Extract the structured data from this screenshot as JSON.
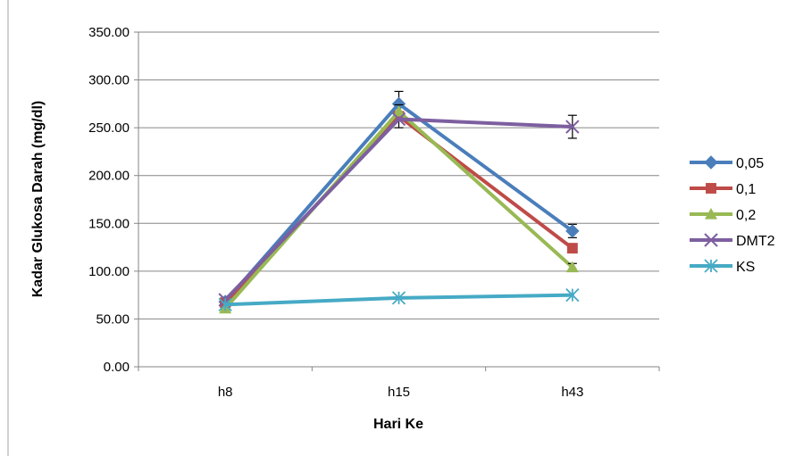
{
  "chart_data": {
    "type": "line",
    "xlabel": "Hari Ke",
    "ylabel": "Kadar Glukosa Darah (mg/dl)",
    "categories": [
      "h8",
      "h15",
      "h43"
    ],
    "ylim": [
      0,
      350
    ],
    "yticks": [
      "0.00",
      "50.00",
      "100.00",
      "150.00",
      "200.00",
      "250.00",
      "300.00",
      "350.00"
    ],
    "grid": true,
    "legend_position": "right",
    "series": [
      {
        "name": "0,05",
        "values": [
          68,
          275,
          142
        ],
        "errors": [
          0,
          13,
          7
        ],
        "color": "#4a7ebb",
        "marker": "diamond"
      },
      {
        "name": "0,1",
        "values": [
          67,
          262,
          124
        ],
        "errors": [
          0,
          12,
          0
        ],
        "color": "#be4b48",
        "marker": "square"
      },
      {
        "name": "0,2",
        "values": [
          61,
          267,
          104
        ],
        "errors": [
          0,
          0,
          4
        ],
        "color": "#98b954",
        "marker": "triangle"
      },
      {
        "name": "DMT2",
        "values": [
          70,
          259,
          251
        ],
        "errors": [
          0,
          0,
          12
        ],
        "color": "#7d5fa0",
        "marker": "x"
      },
      {
        "name": "KS",
        "values": [
          65,
          72,
          75
        ],
        "errors": [
          0,
          0,
          0
        ],
        "color": "#46aac5",
        "marker": "star"
      }
    ]
  }
}
